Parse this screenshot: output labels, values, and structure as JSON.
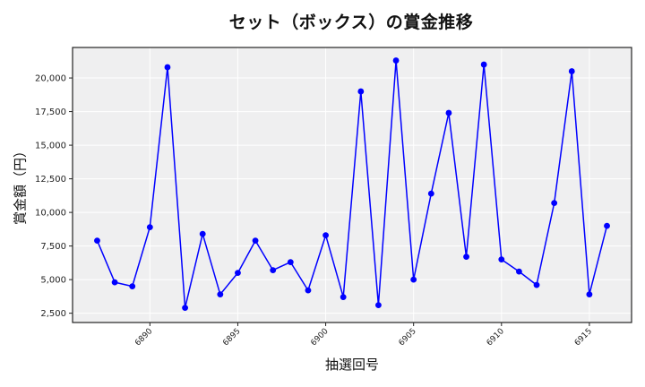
{
  "chart_data": {
    "type": "line",
    "title": "セット（ボックス）の賞金推移",
    "xlabel": "抽選回号",
    "ylabel": "賞金額（円）",
    "x": [
      6887,
      6888,
      6889,
      6890,
      6891,
      6892,
      6893,
      6894,
      6895,
      6896,
      6897,
      6898,
      6899,
      6900,
      6901,
      6902,
      6903,
      6904,
      6905,
      6906,
      6907,
      6908,
      6909,
      6910,
      6911,
      6912,
      6913,
      6914,
      6915,
      6916
    ],
    "series": [
      {
        "name": "賞金額",
        "color": "#0000ff",
        "marker": "circle",
        "values": [
          7900,
          4800,
          4500,
          8900,
          20800,
          2900,
          8400,
          3900,
          5500,
          7900,
          5700,
          6300,
          4200,
          8300,
          3700,
          19000,
          3100,
          21300,
          5000,
          11400,
          17400,
          6700,
          21000,
          6500,
          5600,
          4600,
          10700,
          20500,
          3900,
          9000
        ]
      }
    ],
    "xticks": [
      6890,
      6895,
      6900,
      6905,
      6910,
      6915
    ],
    "xtick_labels": [
      "6890",
      "6895",
      "6900",
      "6905",
      "6910",
      "6915"
    ],
    "yticks": [
      2500,
      5000,
      7500,
      10000,
      12500,
      15000,
      17500,
      20000
    ],
    "ytick_labels": [
      "2,500",
      "5,000",
      "7,500",
      "10,000",
      "12,500",
      "15,000",
      "17,500",
      "20,000"
    ],
    "xlim": [
      6885.6,
      6917.4
    ],
    "ylim": [
      1810,
      22270
    ],
    "grid": true,
    "legend": null,
    "colors": {
      "line": "#0000ff",
      "plot_background": "#efeff0",
      "grid": "#ffffff",
      "axis": "#222222"
    }
  }
}
